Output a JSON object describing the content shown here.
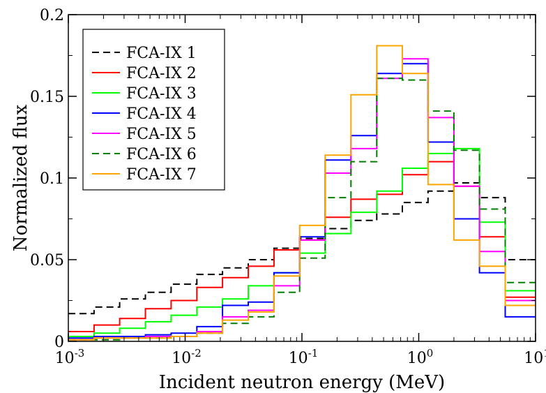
{
  "chart_data": {
    "type": "line",
    "step": true,
    "xscale": "log",
    "xlabel": "Incident neutron energy (MeV)",
    "ylabel": "Normalized flux",
    "xlim": [
      0.001,
      10
    ],
    "ylim": [
      0,
      0.2
    ],
    "grid": false,
    "legend_position": "top-left",
    "x_ticks": [
      {
        "value": 0.001,
        "base": "10",
        "exp": "-3"
      },
      {
        "value": 0.01,
        "base": "10",
        "exp": "-2"
      },
      {
        "value": 0.1,
        "base": "10",
        "exp": "-1"
      },
      {
        "value": 1,
        "base": "10",
        "exp": "0"
      },
      {
        "value": 10,
        "base": "10",
        "exp": "1"
      }
    ],
    "y_ticks": [
      {
        "value": 0,
        "label": "0"
      },
      {
        "value": 0.05,
        "label": "0.05"
      },
      {
        "value": 0.1,
        "label": "0.1"
      },
      {
        "value": 0.15,
        "label": "0.15"
      },
      {
        "value": 0.2,
        "label": "0.2"
      }
    ],
    "bin_edges": [
      0.001,
      0.00166,
      0.00275,
      0.00457,
      0.00759,
      0.0126,
      0.0209,
      0.0347,
      0.0576,
      0.0955,
      0.158,
      0.263,
      0.437,
      0.724,
      1.2,
      2.0,
      3.31,
      5.5,
      10
    ],
    "series": [
      {
        "name": "FCA-IX 1",
        "color": "#000000",
        "dash": "10,6",
        "values": [
          0.017,
          0.021,
          0.026,
          0.03,
          0.035,
          0.041,
          0.045,
          0.05,
          0.057,
          0.063,
          0.069,
          0.074,
          0.078,
          0.085,
          0.092,
          0.097,
          0.088,
          0.05
        ]
      },
      {
        "name": "FCA-IX 2",
        "color": "#ff0000",
        "dash": "",
        "values": [
          0.006,
          0.01,
          0.014,
          0.02,
          0.025,
          0.033,
          0.039,
          0.046,
          0.056,
          0.062,
          0.076,
          0.087,
          0.09,
          0.102,
          0.11,
          0.095,
          0.064,
          0.027
        ]
      },
      {
        "name": "FCA-IX 3",
        "color": "#00ff00",
        "dash": "",
        "values": [
          0.003,
          0.005,
          0.008,
          0.012,
          0.016,
          0.021,
          0.026,
          0.034,
          0.042,
          0.054,
          0.066,
          0.079,
          0.092,
          0.106,
          0.115,
          0.118,
          0.073,
          0.031
        ]
      },
      {
        "name": "FCA-IX 4",
        "color": "#0000ff",
        "dash": "",
        "values": [
          0.002,
          0.003,
          0.003,
          0.004,
          0.005,
          0.009,
          0.022,
          0.024,
          0.042,
          0.064,
          0.111,
          0.126,
          0.164,
          0.17,
          0.122,
          0.075,
          0.042,
          0.015
        ]
      },
      {
        "name": "FCA-IX 5",
        "color": "#ff00ff",
        "dash": "",
        "values": [
          0.001,
          0.002,
          0.002,
          0.003,
          0.003,
          0.006,
          0.015,
          0.019,
          0.034,
          0.062,
          0.103,
          0.118,
          0.161,
          0.173,
          0.137,
          0.095,
          0.055,
          0.025
        ]
      },
      {
        "name": "FCA-IX 6",
        "color": "#008000",
        "dash": "10,6",
        "values": [
          0.001,
          0.001,
          0.002,
          0.002,
          0.003,
          0.005,
          0.011,
          0.015,
          0.03,
          0.051,
          0.088,
          0.11,
          0.161,
          0.16,
          0.141,
          0.117,
          0.081,
          0.036
        ]
      },
      {
        "name": "FCA-IX 7",
        "color": "#ffa500",
        "dash": "",
        "values": [
          0.001,
          0.002,
          0.002,
          0.002,
          0.003,
          0.005,
          0.013,
          0.018,
          0.04,
          0.071,
          0.114,
          0.151,
          0.181,
          0.164,
          0.096,
          0.062,
          0.046,
          0.022
        ]
      }
    ]
  }
}
